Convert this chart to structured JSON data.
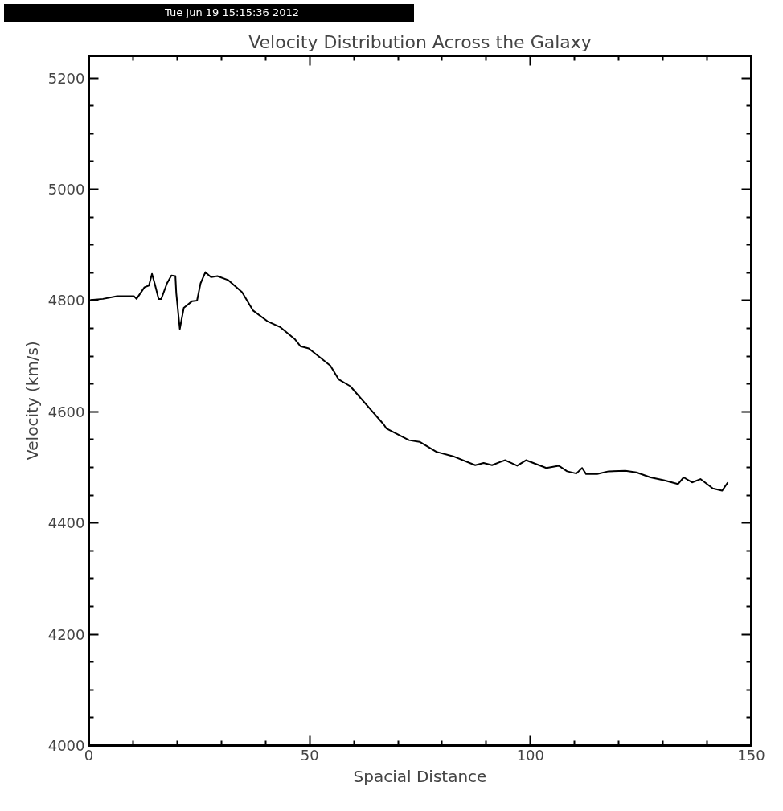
{
  "chart_data": {
    "type": "line",
    "title": "Velocity Distribution Across the Galaxy",
    "xlabel": "Spacial Distance",
    "ylabel": "Velocity (km/s)",
    "annotations": [
      "Tue Jun 19 15:15:36 2012"
    ],
    "xlim": [
      0,
      150
    ],
    "xticks": [
      0,
      50,
      100,
      150
    ],
    "ylim": [
      4000,
      5240
    ],
    "yticks": [
      4000,
      4200,
      4400,
      4600,
      4800,
      5000,
      5200
    ],
    "grid": false,
    "marker": "none",
    "line_style": "solid",
    "series": [
      {
        "color": "#000000",
        "x": [
          0.4,
          3.2,
          6.4,
          10.2,
          10.8,
          12.6,
          13.6,
          14.3,
          14.9,
          15.8,
          16.4,
          17.7,
          18.7,
          19.6,
          19.8,
          20.6,
          21.5,
          23.4,
          24.5,
          25.3,
          26.4,
          27.7,
          29.1,
          31.5,
          34.7,
          37.2,
          40.4,
          43.4,
          46.6,
          47.9,
          49.8,
          54.7,
          56.6,
          59.2,
          66.8,
          67.4,
          72.5,
          74.9,
          78.7,
          82.5,
          87.5,
          89.4,
          91.3,
          93.2,
          94.3,
          97.0,
          99.0,
          103.6,
          106.4,
          108.3,
          110.4,
          111.7,
          112.6,
          115.1,
          117.7,
          121.5,
          124.0,
          127.2,
          130.2,
          133.4,
          134.7,
          136.6,
          138.5,
          141.3,
          143.4,
          144.7
        ],
        "values": [
          4801,
          4803,
          4808,
          4808,
          4803,
          4824,
          4827,
          4848,
          4831,
          4803,
          4803,
          4831,
          4845,
          4844,
          4813,
          4749,
          4787,
          4799,
          4800,
          4831,
          4851,
          4842,
          4844,
          4837,
          4815,
          4782,
          4763,
          4752,
          4731,
          4718,
          4714,
          4683,
          4658,
          4646,
          4577,
          4570,
          4549,
          4546,
          4528,
          4520,
          4504,
          4508,
          4504,
          4510,
          4513,
          4503,
          4513,
          4499,
          4503,
          4493,
          4489,
          4499,
          4488,
          4488,
          4493,
          4494,
          4491,
          4482,
          4477,
          4470,
          4482,
          4473,
          4479,
          4462,
          4458,
          4473
        ]
      }
    ]
  }
}
